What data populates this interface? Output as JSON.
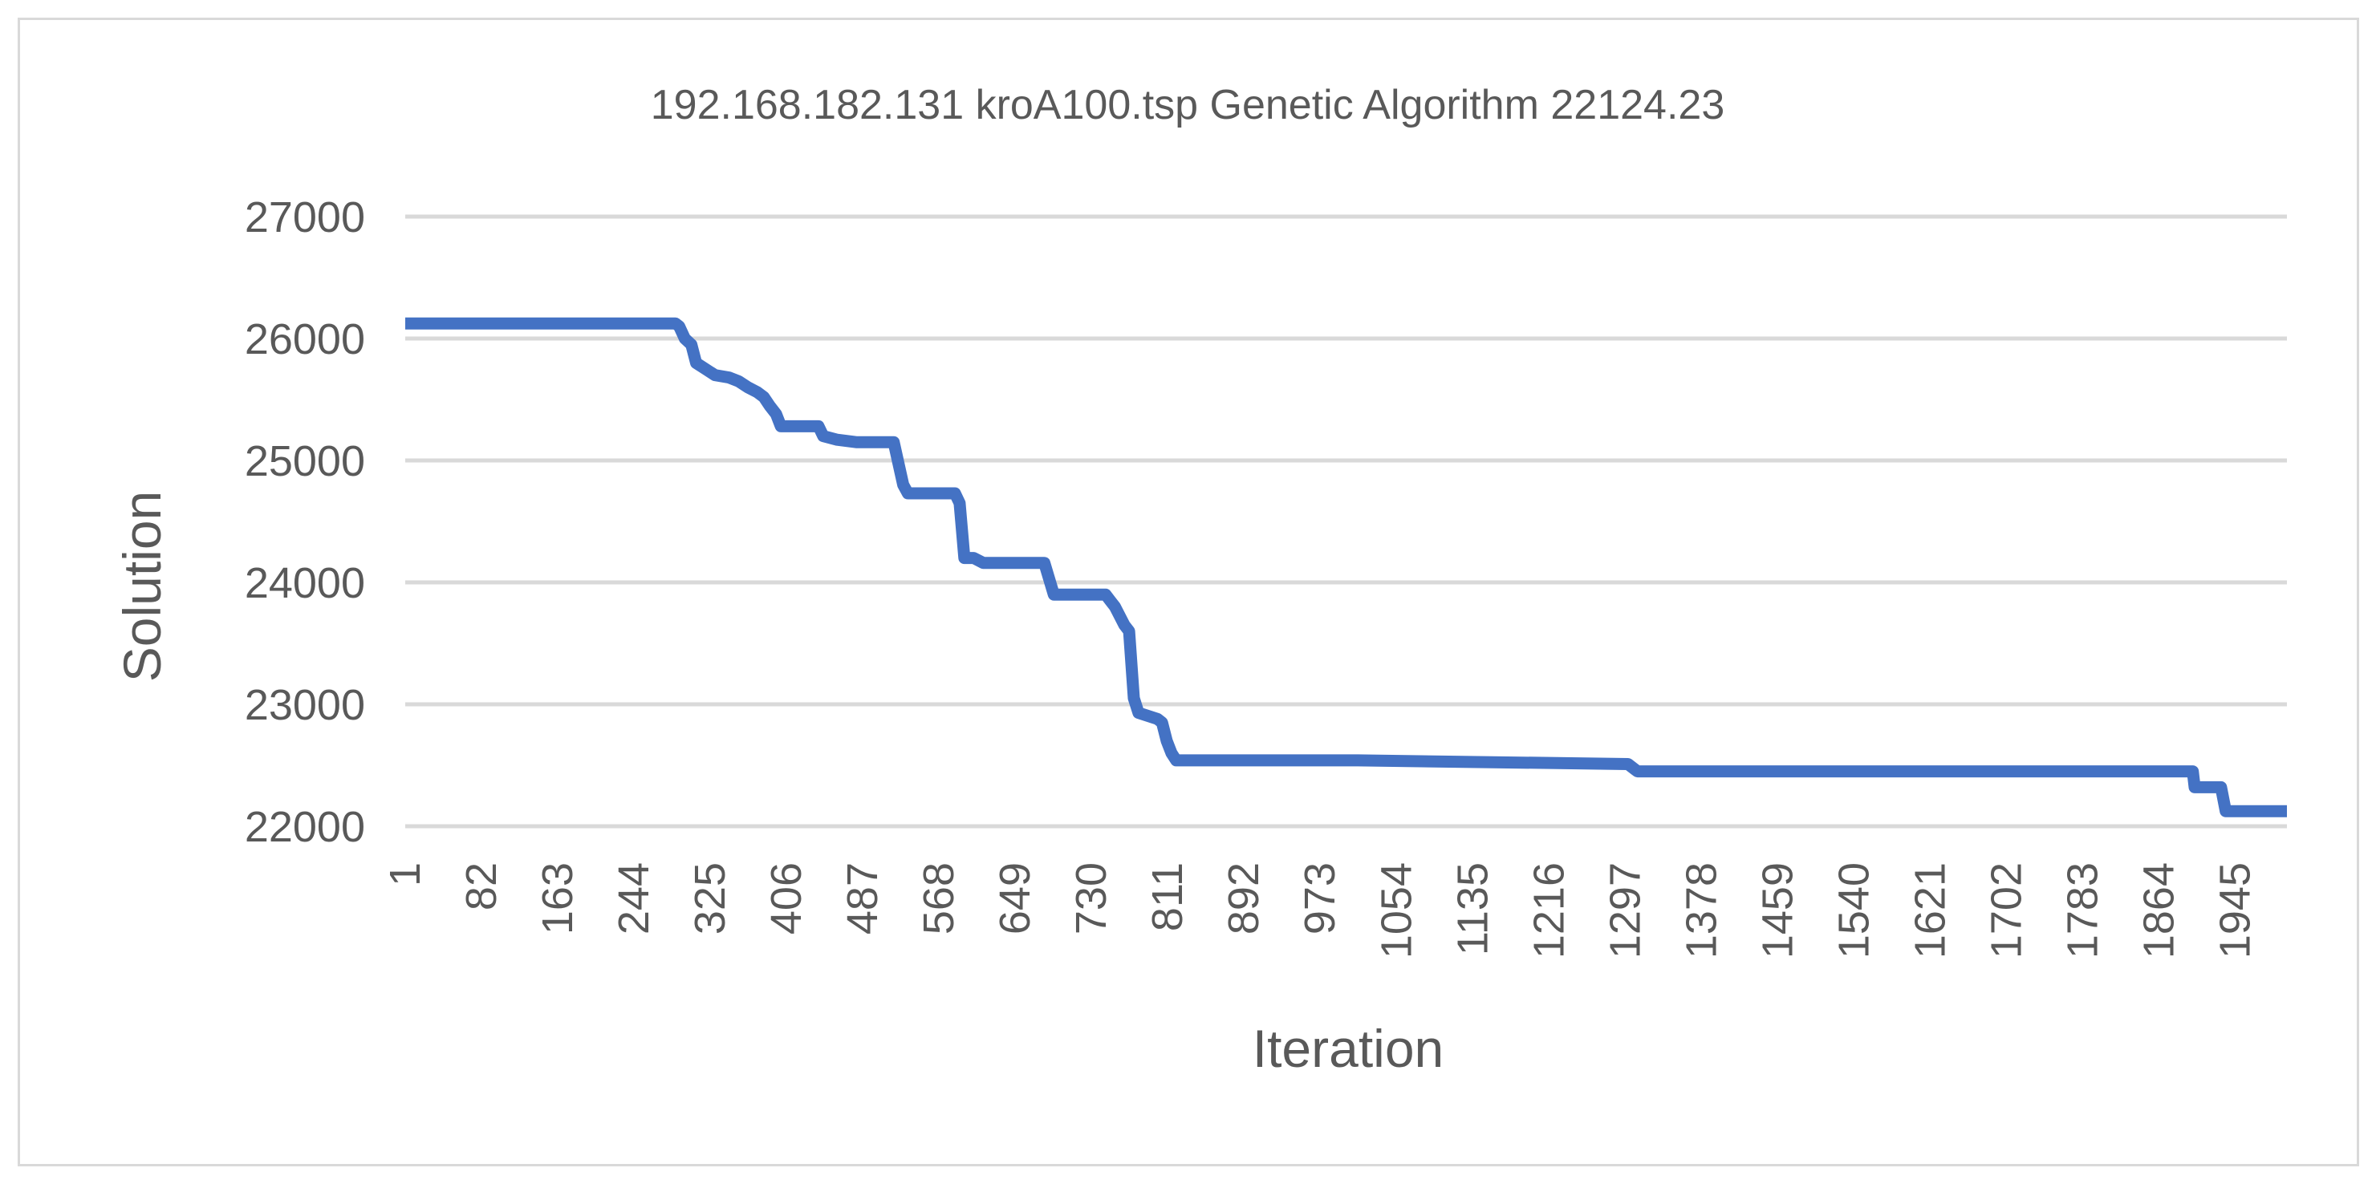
{
  "chart_data": {
    "type": "line",
    "title": "192.168.182.131 kroA100.tsp Genetic Algorithm 22124.23",
    "xlabel": "Iteration",
    "ylabel": "Solution",
    "xlim": [
      1,
      2000
    ],
    "ylim": [
      22000,
      27000
    ],
    "grid": true,
    "legend": "none",
    "y_ticks": [
      22000,
      23000,
      24000,
      25000,
      26000,
      27000
    ],
    "x_ticks": [
      "1",
      "82",
      "163",
      "244",
      "325",
      "406",
      "487",
      "568",
      "649",
      "730",
      "811",
      "892",
      "973",
      "1054",
      "1135",
      "1216",
      "1297",
      "1378",
      "1459",
      "1540",
      "1621",
      "1702",
      "1783",
      "1864",
      "1945"
    ],
    "line_color": "#4472c4",
    "series": [
      {
        "name": "Solution",
        "x": [
          1,
          288,
          292,
          298,
          305,
          310,
          320,
          330,
          345,
          355,
          365,
          375,
          382,
          388,
          395,
          400,
          440,
          445,
          460,
          480,
          520,
          530,
          535,
          585,
          590,
          595,
          600,
          605,
          615,
          625,
          680,
          690,
          745,
          750,
          755,
          765,
          770,
          775,
          780,
          800,
          805,
          810,
          815,
          820,
          1013,
          1300,
          1310,
          1900,
          1902,
          1930,
          1935,
          2000
        ],
        "y": [
          26124,
          26124,
          26100,
          26000,
          25950,
          25800,
          25750,
          25700,
          25680,
          25650,
          25600,
          25560,
          25520,
          25450,
          25380,
          25280,
          25280,
          25200,
          25170,
          25150,
          25150,
          24800,
          24730,
          24730,
          24650,
          24200,
          24200,
          24200,
          24160,
          24160,
          24160,
          23900,
          23900,
          23850,
          23800,
          23650,
          23600,
          23050,
          22930,
          22880,
          22850,
          22700,
          22600,
          22540,
          22540,
          22510,
          22450,
          22450,
          22320,
          22320,
          22124,
          22124
        ]
      }
    ]
  }
}
